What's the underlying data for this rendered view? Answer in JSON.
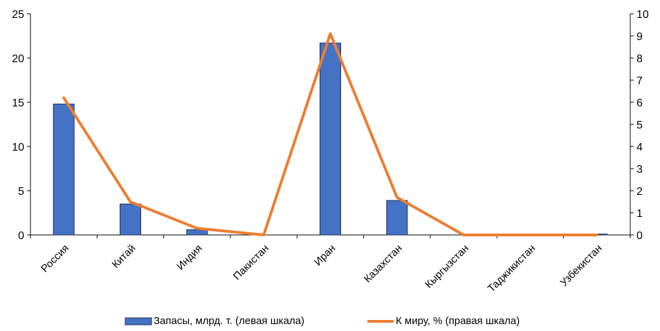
{
  "chart_data": {
    "type": "bar+line",
    "categories": [
      "Россия",
      "Китай",
      "Индия",
      "Пакистан",
      "Иран",
      "Казахстан",
      "Кыргызстан",
      "Таджикистан",
      "Узбекистан"
    ],
    "series": [
      {
        "name": "Запасы, млрд. т. (левая шкала)",
        "type": "bar",
        "axis": "left",
        "color": "#4472c4",
        "values": [
          14.8,
          3.5,
          0.6,
          0.0,
          21.7,
          3.9,
          0.0,
          0.0,
          0.1
        ]
      },
      {
        "name": "К миру, % (правая шкала)",
        "type": "line",
        "axis": "right",
        "color": "#ed7d31",
        "values": [
          6.2,
          1.5,
          0.3,
          0.0,
          9.1,
          1.7,
          0.0,
          0.0,
          0.0
        ]
      }
    ],
    "y_left": {
      "min": 0,
      "max": 25,
      "ticks": [
        "0",
        "5",
        "10",
        "15",
        "20",
        "25"
      ]
    },
    "y_right": {
      "min": 0,
      "max": 10,
      "ticks": [
        "0",
        "1",
        "2",
        "3",
        "4",
        "5",
        "6",
        "7",
        "8",
        "9",
        "10"
      ]
    },
    "grid": false,
    "legend_position": "bottom"
  }
}
